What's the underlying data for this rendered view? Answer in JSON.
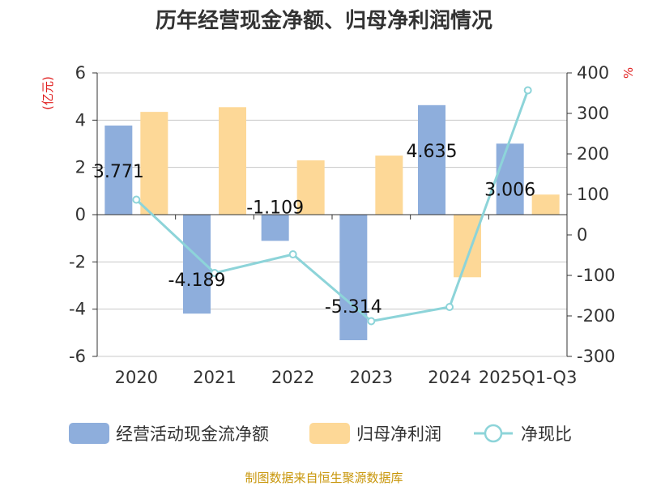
{
  "title": "历年经营现金净额、归母净利润情况",
  "source": "制图数据来自恒生聚源数据库",
  "chart_data": {
    "type": "bar",
    "categories": [
      "2020",
      "2021",
      "2022",
      "2023",
      "2024",
      "2025Q1-Q3"
    ],
    "left_axis": {
      "unit": "(亿元)",
      "ylim": [
        -6,
        6
      ],
      "ticks": [
        6,
        4,
        2,
        0,
        -2,
        -4,
        -6
      ]
    },
    "right_axis": {
      "unit": "%",
      "ylim": [
        -300,
        400
      ],
      "ticks": [
        400,
        300,
        200,
        100,
        0,
        -100,
        -200,
        -300
      ]
    },
    "series": [
      {
        "name": "经营活动现金流净额",
        "kind": "bar",
        "axis": "left",
        "color": "#8eaedc",
        "values": [
          3.771,
          -4.189,
          -1.109,
          -5.314,
          4.635,
          3.006
        ],
        "labels": [
          "3.771",
          "-4.189",
          "-1.109",
          "-5.314",
          "4.635",
          "3.006"
        ]
      },
      {
        "name": "归母净利润",
        "kind": "bar",
        "axis": "left",
        "color": "#fdd897",
        "values": [
          4.35,
          4.55,
          2.3,
          2.5,
          -2.65,
          0.85
        ]
      },
      {
        "name": "净现比",
        "kind": "line",
        "axis": "right",
        "color": "#8dd4d9",
        "values": [
          87,
          -94,
          -48,
          -213,
          -178,
          357
        ]
      }
    ],
    "grid": true,
    "legend_position": "bottom"
  }
}
